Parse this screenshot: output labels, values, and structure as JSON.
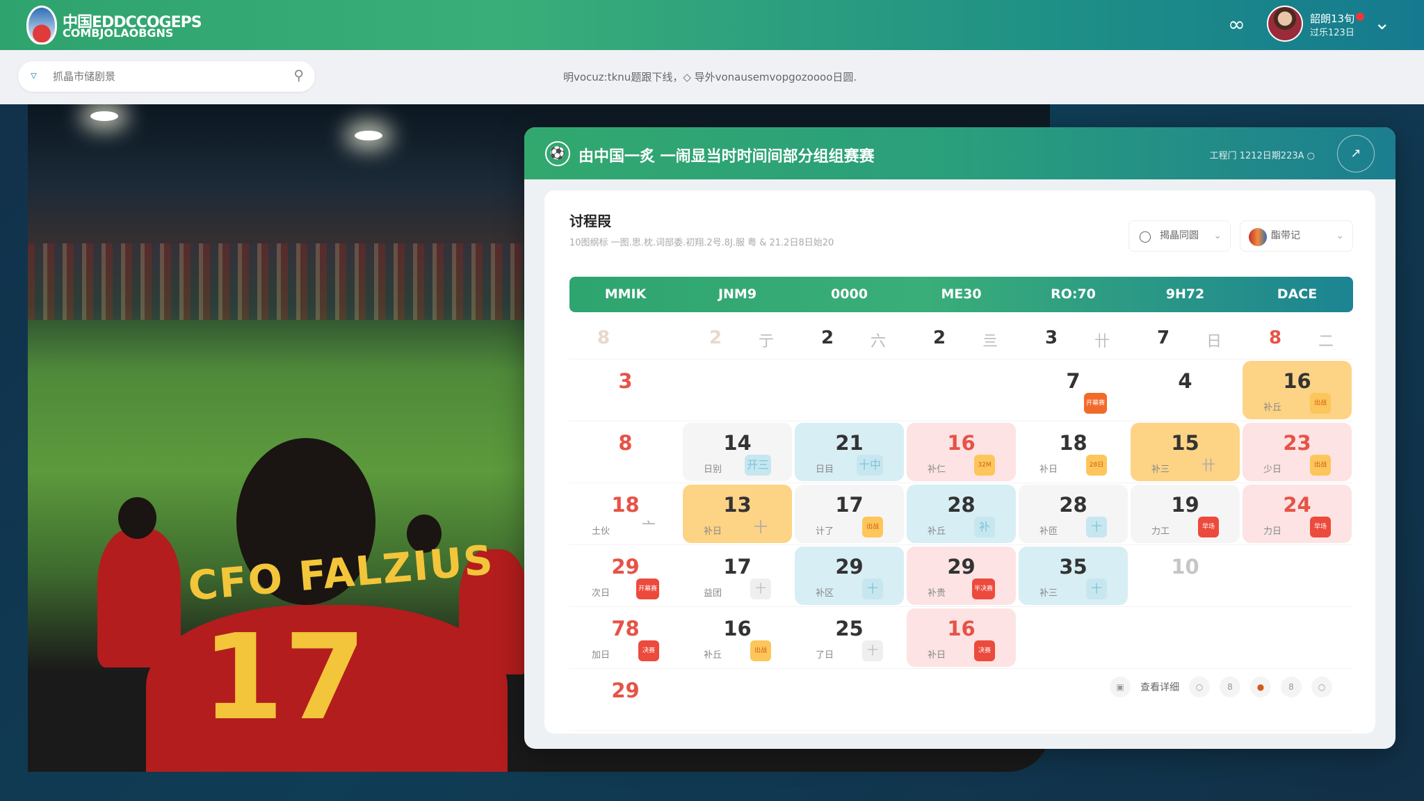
{
  "header": {
    "brand_line1": "中国EDDCCOGEPS",
    "brand_line2": "COMBJOLAOBGNS",
    "menu_icon": "grid-icon",
    "user_name": "韶朗13旬",
    "user_role": "过乐123日",
    "chevron": "chevron-down-icon"
  },
  "search": {
    "placeholder": "抓晶市储剧景",
    "value": ""
  },
  "notice": "明vocuz:tknu题跟下线，◇ 导外vonausemvopgozoooo日圆.",
  "photo": {
    "jersey_name": "CFO FALZIUS",
    "jersey_number": "17"
  },
  "panel": {
    "title": "由中国一炙 一闹显当时时间间部分组组赛赛",
    "meta": "工程门 1212日期223A ○",
    "share_icon": "share-icon"
  },
  "card": {
    "title": "讨程叚",
    "subtitle": "10图纲标 一图.思.枕.词部委.初翔.2号.8J.服 粤 & 21.2日8日始20",
    "filter1": "揭晶同圆",
    "filter2": "酯带记"
  },
  "weekdays": [
    "MMIK",
    "JNM9",
    "0000",
    "ME30",
    "RO:70",
    "9H72",
    "DACE"
  ],
  "colors": {
    "accent": "#2fa36d",
    "red": "#e65347",
    "yellow": "#fdd386",
    "blue": "#d7eef4",
    "pink": "#fde3e3"
  },
  "calendar": [
    [
      {
        "n": "8",
        "nc": "faded"
      },
      {
        "n": "2",
        "nc": "faded",
        "side": "亍"
      },
      {
        "n": "2",
        "side": "六"
      },
      {
        "n": "2",
        "side": "亖"
      },
      {
        "n": "3",
        "side": "卄"
      },
      {
        "n": "7",
        "side": "日"
      },
      {
        "n": "8",
        "nc": "red",
        "side": "二"
      }
    ],
    [
      {
        "n": "3",
        "nc": "red"
      },
      {},
      {},
      {},
      {
        "n": "7",
        "tag": "开幕赛",
        "ts": "orange"
      },
      {
        "n": "4"
      },
      {
        "n": "16",
        "bg": "yellow",
        "s": "补丘",
        "tag": "出战",
        "ts": "yellow"
      }
    ],
    [
      {
        "n": "8",
        "nc": "red"
      },
      {
        "n": "14",
        "bg": "gray",
        "s": "日别",
        "tag": "开三",
        "ts": "blue"
      },
      {
        "n": "21",
        "bg": "blue",
        "s": "日目",
        "tag": "十中",
        "ts": "blue"
      },
      {
        "n": "16",
        "nc": "red",
        "bg": "pink",
        "s": "补仁",
        "tag": "32M",
        "ts": "yellow"
      },
      {
        "n": "18",
        "s": "补日",
        "tag": "28日",
        "ts": "yellow"
      },
      {
        "n": "15",
        "bg": "yellow",
        "s": "补三",
        "tag": "卄",
        "ts": "plain"
      },
      {
        "n": "23",
        "nc": "red",
        "bg": "pink",
        "s": "少日",
        "tag": "出战",
        "ts": "yellow"
      }
    ],
    [
      {
        "n": "18",
        "nc": "red",
        "s": "土伙",
        "tag": "亠",
        "ts": "plain"
      },
      {
        "n": "13",
        "bg": "yellow",
        "s": "补日",
        "tag": "十",
        "ts": "plain"
      },
      {
        "n": "17",
        "bg": "gray",
        "s": "计了",
        "tag": "出战",
        "ts": "yellow"
      },
      {
        "n": "28",
        "bg": "blue",
        "s": "补丘",
        "tag": "补",
        "ts": "blue"
      },
      {
        "n": "28",
        "bg": "gray",
        "s": "补匝",
        "tag": "十",
        "ts": "blue"
      },
      {
        "n": "19",
        "bg": "gray",
        "s": "力工",
        "tag": "早场",
        "ts": "red"
      },
      {
        "n": "24",
        "nc": "red",
        "bg": "pink",
        "s": "力日",
        "tag": "早场",
        "ts": "red"
      }
    ],
    [
      {
        "n": "29",
        "nc": "red",
        "s": "次日",
        "tag": "开幕赛",
        "ts": "red"
      },
      {
        "n": "17",
        "s": "益团",
        "tag": "十",
        "ts": "gray"
      },
      {
        "n": "29",
        "bg": "blue",
        "s": "补区",
        "tag": "十",
        "ts": "blue"
      },
      {
        "n": "29",
        "bg": "pink",
        "s": "补贵",
        "tag": "半决赛",
        "ts": "red"
      },
      {
        "n": "35",
        "bg": "blue",
        "s": "补三",
        "tag": "十",
        "ts": "blue"
      },
      {
        "n": "10",
        "nc": "light"
      },
      {}
    ],
    [
      {
        "n": "78",
        "nc": "red",
        "s": "加日",
        "tag": "决赛",
        "ts": "red"
      },
      {
        "n": "16",
        "s": "补丘",
        "tag": "出战",
        "ts": "yellow"
      },
      {
        "n": "25",
        "s": "了日",
        "tag": "十",
        "ts": "gray"
      },
      {
        "n": "16",
        "nc": "red",
        "bg": "pink",
        "s": "补日",
        "tag": "决赛",
        "ts": "red"
      },
      {},
      {},
      {}
    ],
    [
      {
        "n": "29",
        "nc": "red"
      }
    ]
  ],
  "footer": {
    "view_label": "查看详细",
    "view_icon": "calendar-icon",
    "page_buttons": [
      "○",
      "8",
      "●",
      "8",
      "○"
    ]
  }
}
